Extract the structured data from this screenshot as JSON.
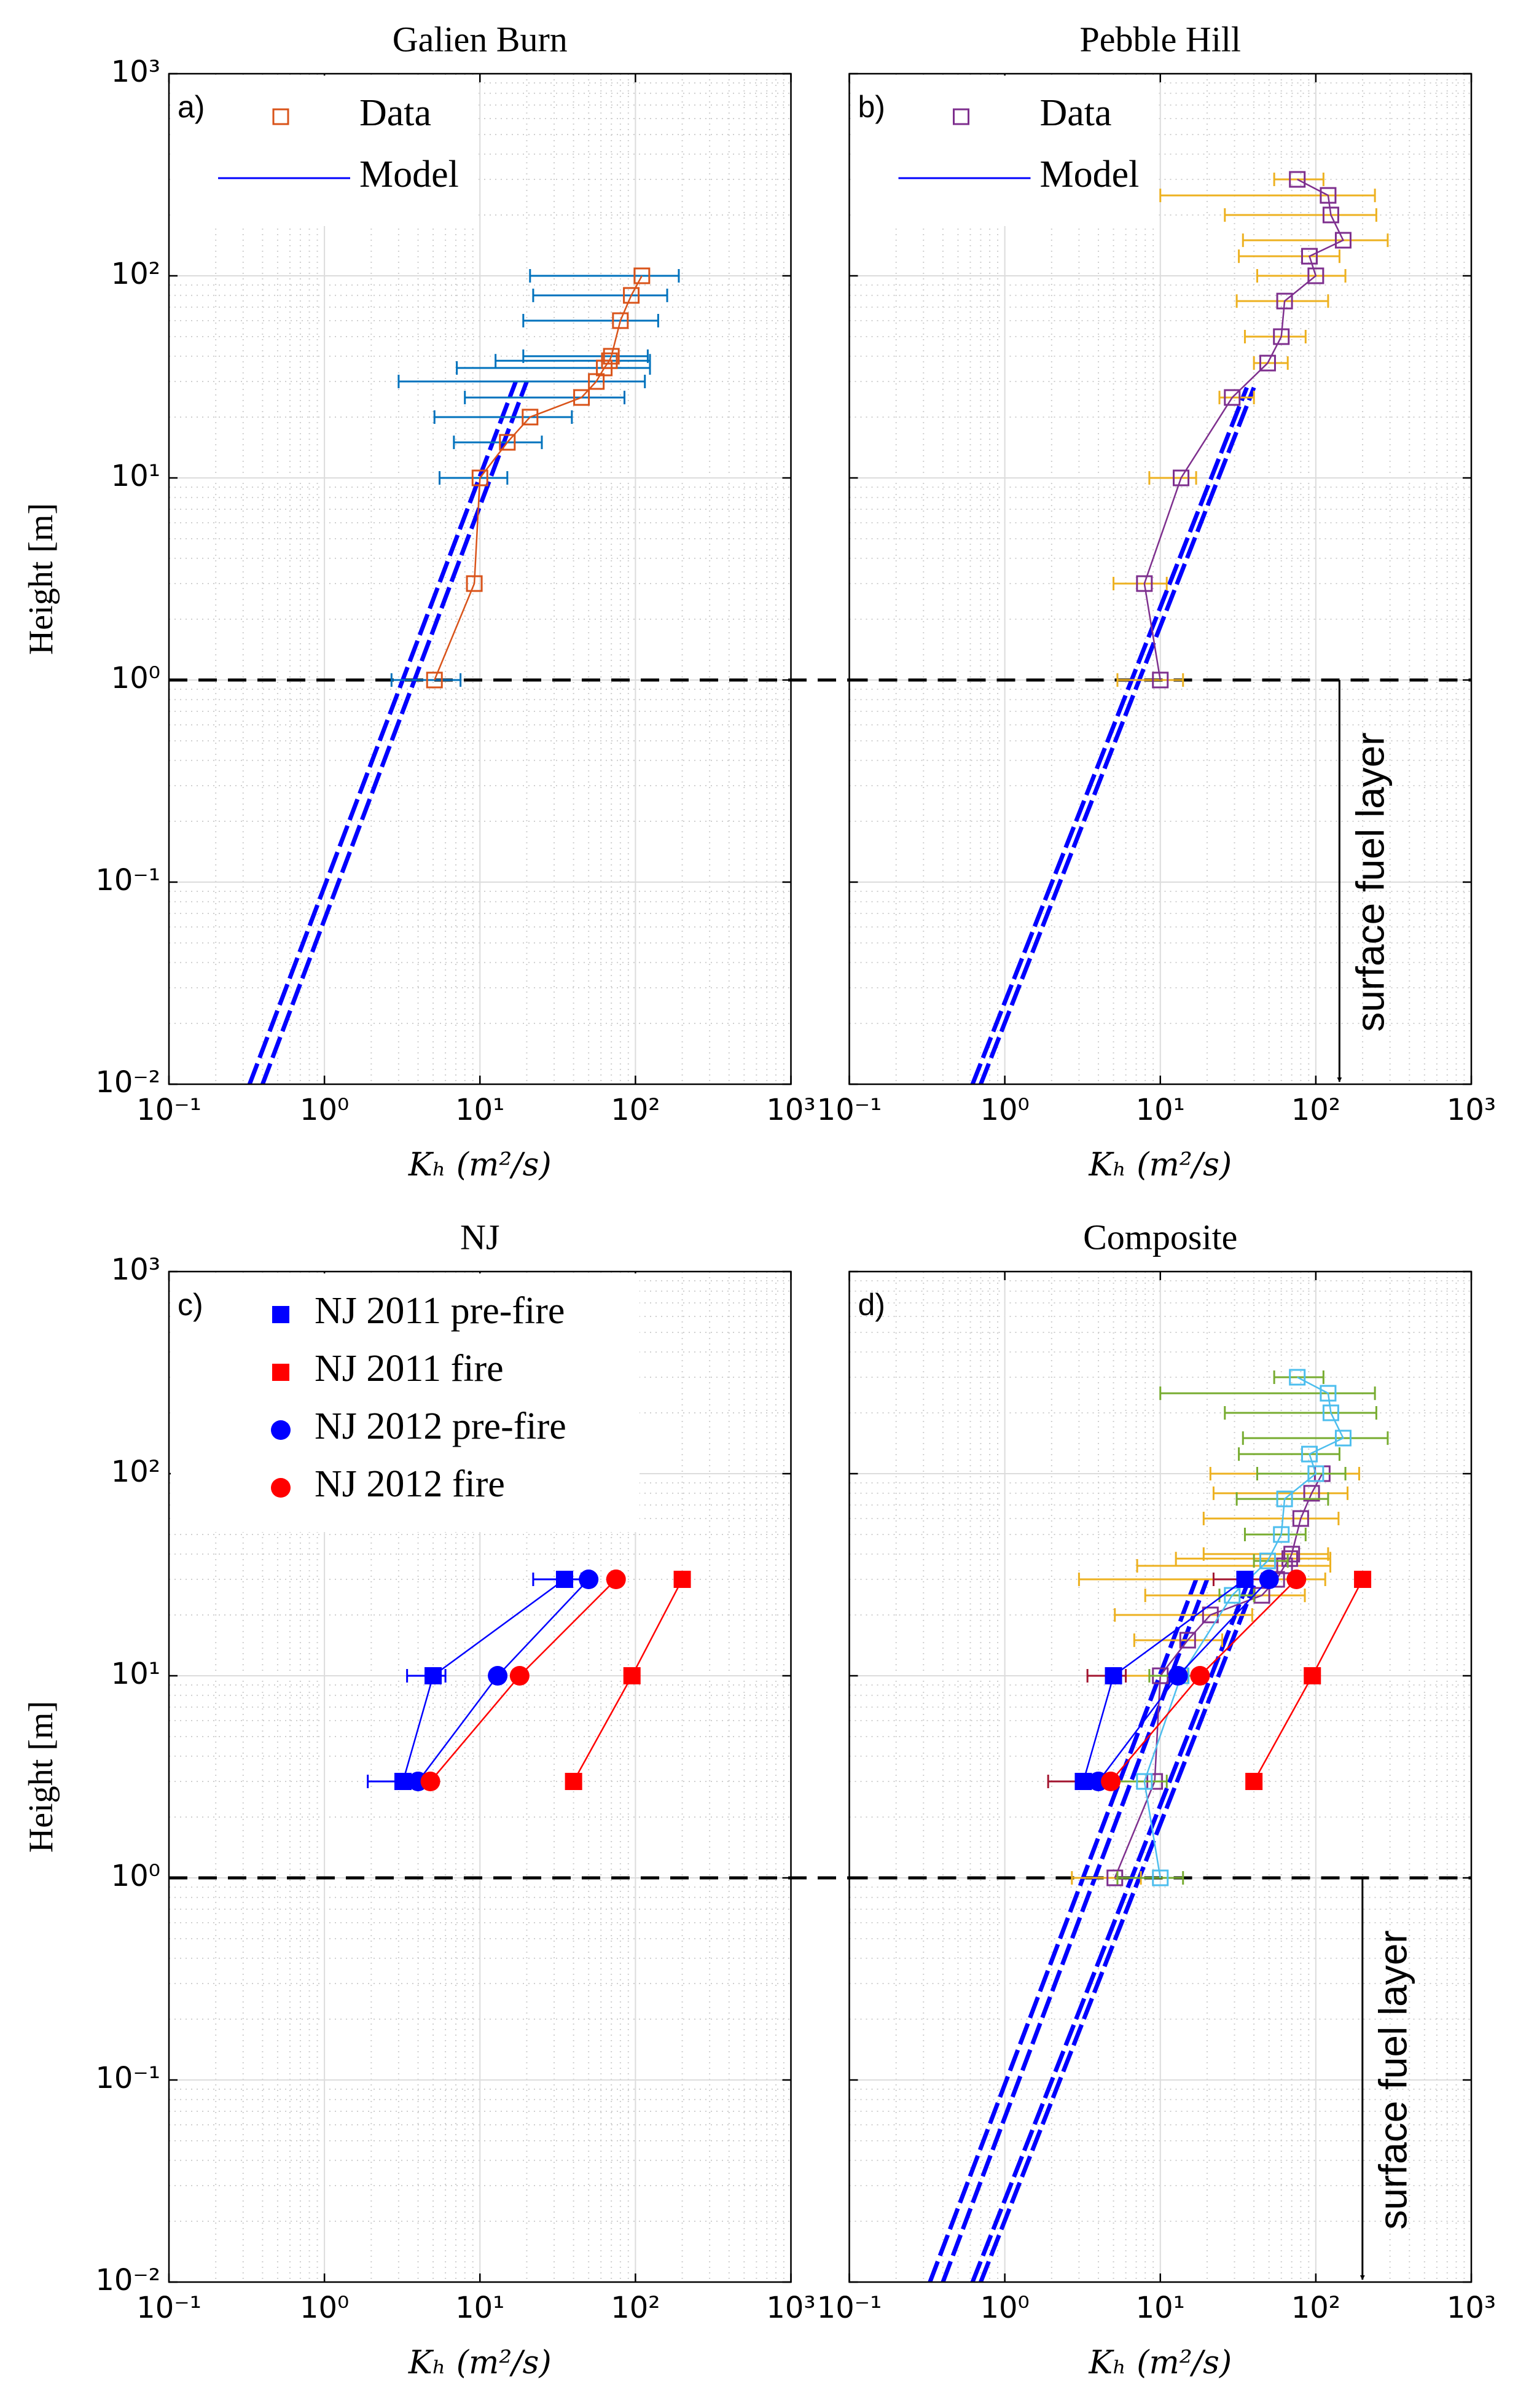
{
  "chart_data": [
    {
      "type": "scatter",
      "title": "Galien Burn",
      "panel_label": "a)",
      "xlabel": "Kₕ (m²/s)",
      "ylabel": "Height [m]",
      "xscale": "log",
      "yscale": "log",
      "xlim": [
        0.1,
        1000
      ],
      "ylim": [
        0.01,
        1000
      ],
      "xticks": [
        {
          "value": 0.1,
          "label": "10⁻¹"
        },
        {
          "value": 1,
          "label": "10⁰"
        },
        {
          "value": 10,
          "label": "10¹"
        },
        {
          "value": 100,
          "label": "10²"
        },
        {
          "value": 1000,
          "label": "10³"
        }
      ],
      "yticks": [
        {
          "value": 0.01,
          "label": "10⁻²"
        },
        {
          "value": 0.1,
          "label": "10⁻¹"
        },
        {
          "value": 1,
          "label": "10⁰"
        },
        {
          "value": 10,
          "label": "10¹"
        },
        {
          "value": 100,
          "label": "10²"
        },
        {
          "value": 1000,
          "label": "10³"
        }
      ],
      "grid": true,
      "minor_grid": true,
      "legend": "upper left",
      "hline": 1,
      "series": [
        {
          "name": "Data",
          "marker": "open-square",
          "color": "#d95319",
          "error_color": "#0072bd",
          "x": [
            5.1,
            9.2,
            10,
            15,
            21,
            45,
            56,
            63,
            68,
            70,
            80,
            94,
            110
          ],
          "values": [
            1,
            3,
            10,
            15,
            20,
            25,
            30,
            35,
            38,
            40,
            60,
            80,
            100
          ],
          "xlow": [
            2.7,
            null,
            5.5,
            6.8,
            5.1,
            8,
            3,
            7.1,
            12.6,
            19,
            19,
            22,
            21
          ],
          "xhigh": [
            7.5,
            null,
            15,
            25,
            39,
            85,
            115,
            124,
            124,
            120,
            140,
            160,
            190
          ]
        }
      ],
      "model": {
        "name": "Model",
        "color": "#0000ff",
        "lines": [
          {
            "x": [
              0.33,
              17
            ],
            "y": [
              0.01,
              30
            ]
          },
          {
            "x": [
              0.4,
              20
            ],
            "y": [
              0.01,
              30
            ]
          }
        ]
      }
    },
    {
      "type": "scatter",
      "title": "Pebble Hill",
      "panel_label": "b)",
      "xlabel": "Kₕ (m²/s)",
      "xscale": "log",
      "yscale": "log",
      "xlim": [
        0.1,
        1000
      ],
      "ylim": [
        0.01,
        1000
      ],
      "xticks": [
        {
          "value": 0.1,
          "label": "10⁻¹"
        },
        {
          "value": 1,
          "label": "10⁰"
        },
        {
          "value": 10,
          "label": "10¹"
        },
        {
          "value": 100,
          "label": "10²"
        },
        {
          "value": 1000,
          "label": "10³"
        }
      ],
      "yticks": [
        0.01,
        0.1,
        1,
        10,
        100,
        1000
      ],
      "grid": true,
      "minor_grid": true,
      "legend": "upper left",
      "hline": 1,
      "annotation": "surface fuel layer",
      "series": [
        {
          "name": "Data",
          "marker": "open-square",
          "color": "#7e2f8e",
          "error_color": "#edb120",
          "x": [
            10,
            7.9,
            13.6,
            29,
            49,
            60,
            63,
            100,
            91,
            150,
            125,
            120,
            76
          ],
          "values": [
            1,
            3,
            10,
            25,
            37,
            50,
            75,
            100,
            125,
            150,
            200,
            250,
            300
          ],
          "xlow": [
            5.3,
            5,
            8.5,
            24,
            40,
            35,
            31,
            42,
            32,
            34,
            26,
            10,
            54
          ],
          "xhigh": [
            14,
            11,
            17,
            40,
            66,
            86,
            120,
            155,
            142,
            290,
            245,
            240,
            112
          ]
        }
      ],
      "model": {
        "name": "Model",
        "color": "#0000ff",
        "lines": [
          {
            "x": [
              0.62,
              36
            ],
            "y": [
              0.01,
              28
            ]
          },
          {
            "x": [
              0.7,
              40
            ],
            "y": [
              0.01,
              28
            ]
          }
        ]
      }
    },
    {
      "type": "scatter",
      "title": "NJ",
      "panel_label": "c)",
      "xlabel": "Kₕ (m²/s)",
      "ylabel": "Height [m]",
      "xscale": "log",
      "yscale": "log",
      "xlim": [
        0.1,
        1000
      ],
      "ylim": [
        0.01,
        1000
      ],
      "xticks": [
        {
          "value": 0.1,
          "label": "10⁻¹"
        },
        {
          "value": 1,
          "label": "10⁰"
        },
        {
          "value": 10,
          "label": "10¹"
        },
        {
          "value": 100,
          "label": "10²"
        },
        {
          "value": 1000,
          "label": "10³"
        }
      ],
      "yticks": [
        {
          "value": 0.01,
          "label": "10⁻²"
        },
        {
          "value": 0.1,
          "label": "10⁻¹"
        },
        {
          "value": 1,
          "label": "10⁰"
        },
        {
          "value": 10,
          "label": "10¹"
        },
        {
          "value": 100,
          "label": "10²"
        },
        {
          "value": 1000,
          "label": "10³"
        }
      ],
      "grid": true,
      "minor_grid": true,
      "legend": "upper left",
      "hline": 1,
      "series": [
        {
          "name": "NJ 2011 pre-fire",
          "marker": "filled-square",
          "color": "#0000ff",
          "error_color": "#0000ff",
          "x": [
            3.2,
            5,
            35
          ],
          "values": [
            3,
            10,
            30
          ],
          "xlow": [
            1.9,
            3.4,
            22
          ],
          "xhigh": [
            3.8,
            6,
            45
          ]
        },
        {
          "name": "NJ 2011 fire",
          "marker": "filled-square",
          "color": "#ff0000",
          "x": [
            40,
            95,
            200
          ],
          "values": [
            3,
            10,
            30
          ]
        },
        {
          "name": "NJ 2012 pre-fire",
          "marker": "filled-circle",
          "color": "#0000ff",
          "x": [
            4,
            13,
            50
          ],
          "values": [
            3,
            10,
            30
          ]
        },
        {
          "name": "NJ 2012 fire",
          "marker": "filled-circle",
          "color": "#ff0000",
          "x": [
            4.8,
            18,
            75
          ],
          "values": [
            3,
            10,
            30
          ]
        }
      ]
    },
    {
      "type": "scatter",
      "title": "Composite",
      "panel_label": "d)",
      "xlabel": "Kₕ (m²/s)",
      "xscale": "log",
      "yscale": "log",
      "xlim": [
        0.1,
        1000
      ],
      "ylim": [
        0.01,
        1000
      ],
      "xticks": [
        {
          "value": 0.1,
          "label": "10⁻¹"
        },
        {
          "value": 1,
          "label": "10⁰"
        },
        {
          "value": 10,
          "label": "10¹"
        },
        {
          "value": 100,
          "label": "10²"
        },
        {
          "value": 1000,
          "label": "10³"
        }
      ],
      "yticks": [
        0.01,
        0.1,
        1,
        10,
        100,
        1000
      ],
      "grid": true,
      "minor_grid": true,
      "hline": 1,
      "annotation": "surface fuel layer",
      "series": [
        {
          "marker": "open-square",
          "color": "#7e2f8e",
          "error_color": "#edb120",
          "x": [
            5.1,
            9.2,
            10,
            15,
            21,
            45,
            56,
            63,
            68,
            70,
            80,
            94,
            110
          ],
          "values": [
            1,
            3,
            10,
            15,
            20,
            25,
            30,
            35,
            38,
            40,
            60,
            80,
            100
          ],
          "xlow": [
            2.7,
            null,
            5.5,
            6.8,
            5.1,
            8,
            3,
            7.1,
            12.6,
            19,
            19,
            22,
            21
          ],
          "xhigh": [
            7.5,
            null,
            15,
            25,
            39,
            85,
            115,
            124,
            124,
            120,
            140,
            160,
            190
          ]
        },
        {
          "marker": "open-square",
          "color": "#4dbeee",
          "error_color": "#77ac30",
          "x": [
            10,
            7.9,
            13.6,
            29,
            49,
            60,
            63,
            100,
            91,
            150,
            125,
            120,
            76
          ],
          "values": [
            1,
            3,
            10,
            25,
            37,
            50,
            75,
            100,
            125,
            150,
            200,
            250,
            300
          ],
          "xlow": [
            5.3,
            5,
            8.5,
            24,
            40,
            35,
            31,
            42,
            32,
            34,
            26,
            10,
            54
          ],
          "xhigh": [
            14,
            11,
            17,
            40,
            66,
            86,
            120,
            155,
            142,
            290,
            245,
            240,
            112
          ]
        },
        {
          "marker": "filled-square",
          "color": "#0000ff",
          "error_color": "#a2142f",
          "x": [
            3.2,
            5,
            35
          ],
          "values": [
            3,
            10,
            30
          ],
          "xlow": [
            1.9,
            3.4,
            22
          ],
          "xhigh": [
            3.8,
            6,
            45
          ]
        },
        {
          "marker": "filled-square",
          "color": "#ff0000",
          "x": [
            40,
            95,
            200
          ],
          "values": [
            3,
            10,
            30
          ]
        },
        {
          "marker": "filled-circle",
          "color": "#0000ff",
          "x": [
            4,
            13,
            50
          ],
          "values": [
            3,
            10,
            30
          ]
        },
        {
          "marker": "filled-circle",
          "color": "#ff0000",
          "x": [
            4.8,
            18,
            75
          ],
          "values": [
            3,
            10,
            30
          ]
        }
      ],
      "model": {
        "color": "#0000ff",
        "lines": [
          {
            "x": [
              0.33,
              17
            ],
            "y": [
              0.01,
              30
            ]
          },
          {
            "x": [
              0.4,
              20
            ],
            "y": [
              0.01,
              30
            ]
          },
          {
            "x": [
              0.62,
              36
            ],
            "y": [
              0.01,
              28
            ]
          },
          {
            "x": [
              0.7,
              40
            ],
            "y": [
              0.01,
              28
            ]
          }
        ]
      }
    }
  ]
}
